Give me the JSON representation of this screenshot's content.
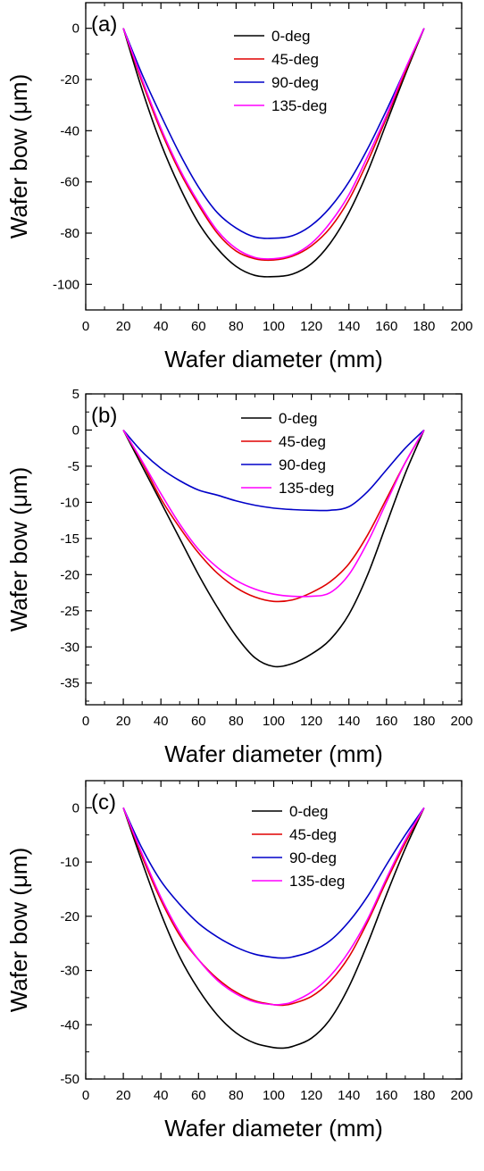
{
  "colors": {
    "0-deg": "#000000",
    "45-deg": "#e00000",
    "90-deg": "#0000c8",
    "135-deg": "#ff00ff"
  },
  "chart_data": [
    {
      "type": "line",
      "panel_label": "(a)",
      "xlabel": "Wafer diameter (mm)",
      "ylabel": "Wafer bow (μm)",
      "xlim": [
        0,
        200
      ],
      "ylim": [
        -110,
        10
      ],
      "xticks": [
        0,
        20,
        40,
        60,
        80,
        100,
        120,
        140,
        160,
        180,
        200
      ],
      "yticks": [
        0,
        -20,
        -40,
        -60,
        -80,
        -100
      ],
      "grid": false,
      "legend_position": "top-center",
      "series": [
        {
          "name": "0-deg",
          "color": "#000000",
          "x": [
            20,
            30,
            40,
            50,
            60,
            70,
            80,
            90,
            100,
            110,
            120,
            130,
            140,
            150,
            160,
            170,
            180
          ],
          "y": [
            0,
            -24,
            -45,
            -62,
            -76,
            -86,
            -93,
            -96.5,
            -97,
            -96,
            -92,
            -84,
            -72,
            -56,
            -37,
            -18,
            0
          ]
        },
        {
          "name": "45-deg",
          "color": "#e00000",
          "x": [
            20,
            30,
            40,
            50,
            60,
            70,
            80,
            90,
            100,
            110,
            120,
            130,
            140,
            150,
            160,
            170,
            180
          ],
          "y": [
            0,
            -21,
            -40,
            -56,
            -69,
            -80,
            -87,
            -90,
            -90.5,
            -89,
            -85,
            -78,
            -67,
            -52,
            -35,
            -17,
            0
          ]
        },
        {
          "name": "90-deg",
          "color": "#0000c8",
          "x": [
            20,
            30,
            40,
            50,
            60,
            70,
            80,
            90,
            100,
            110,
            120,
            130,
            140,
            150,
            160,
            170,
            180
          ],
          "y": [
            0,
            -18,
            -34,
            -49,
            -62,
            -72,
            -78,
            -81.5,
            -82,
            -81,
            -77,
            -70,
            -60,
            -47,
            -32,
            -16,
            0
          ]
        },
        {
          "name": "135-deg",
          "color": "#ff00ff",
          "x": [
            20,
            30,
            40,
            50,
            60,
            70,
            80,
            90,
            100,
            110,
            120,
            130,
            140,
            150,
            160,
            170,
            180
          ],
          "y": [
            0,
            -20,
            -39,
            -55,
            -68,
            -79,
            -86,
            -89.5,
            -90,
            -88.5,
            -84,
            -76,
            -65,
            -50,
            -34,
            -16,
            0
          ]
        }
      ]
    },
    {
      "type": "line",
      "panel_label": "(b)",
      "xlabel": "Wafer diameter (mm)",
      "ylabel": "Wafer bow (μm)",
      "xlim": [
        0,
        200
      ],
      "ylim": [
        -38,
        5
      ],
      "xticks": [
        0,
        20,
        40,
        60,
        80,
        100,
        120,
        140,
        160,
        180,
        200
      ],
      "yticks": [
        5,
        0,
        -5,
        -10,
        -15,
        -20,
        -25,
        -30,
        -35
      ],
      "grid": false,
      "legend_position": "top-center",
      "series": [
        {
          "name": "0-deg",
          "color": "#000000",
          "x": [
            20,
            30,
            40,
            50,
            60,
            70,
            80,
            90,
            100,
            110,
            120,
            130,
            140,
            150,
            160,
            170,
            180
          ],
          "y": [
            0,
            -5,
            -10,
            -15,
            -20,
            -24.5,
            -28.5,
            -31.5,
            -32.7,
            -32.3,
            -31,
            -29,
            -25.5,
            -20,
            -13,
            -6,
            0
          ]
        },
        {
          "name": "45-deg",
          "color": "#e00000",
          "x": [
            20,
            30,
            40,
            50,
            60,
            70,
            80,
            90,
            100,
            110,
            120,
            130,
            140,
            150,
            160,
            170,
            180
          ],
          "y": [
            0,
            -4.5,
            -9.5,
            -13.5,
            -17,
            -19.8,
            -21.8,
            -23.1,
            -23.7,
            -23.5,
            -22.5,
            -21,
            -18.5,
            -14.5,
            -9.5,
            -4.5,
            0
          ]
        },
        {
          "name": "90-deg",
          "color": "#0000c8",
          "x": [
            20,
            30,
            40,
            50,
            60,
            70,
            80,
            90,
            100,
            110,
            120,
            130,
            140,
            150,
            160,
            170,
            180
          ],
          "y": [
            0,
            -3,
            -5.3,
            -7,
            -8.3,
            -9,
            -9.8,
            -10.4,
            -10.8,
            -11,
            -11.1,
            -11.1,
            -10.6,
            -8.5,
            -5.5,
            -2.5,
            0
          ]
        },
        {
          "name": "135-deg",
          "color": "#ff00ff",
          "x": [
            20,
            30,
            40,
            50,
            60,
            70,
            80,
            90,
            100,
            110,
            120,
            130,
            140,
            150,
            160,
            170,
            180
          ],
          "y": [
            0,
            -4.3,
            -8.8,
            -13,
            -16.5,
            -19,
            -20.8,
            -22,
            -22.7,
            -23,
            -23,
            -22.5,
            -20,
            -15.5,
            -10,
            -4.5,
            0
          ]
        }
      ]
    },
    {
      "type": "line",
      "panel_label": "(c)",
      "xlabel": "Wafer diameter (mm)",
      "ylabel": "Wafer bow (μm)",
      "xlim": [
        0,
        200
      ],
      "ylim": [
        -50,
        5
      ],
      "xticks": [
        0,
        20,
        40,
        60,
        80,
        100,
        120,
        140,
        160,
        180,
        200
      ],
      "yticks": [
        0,
        -10,
        -20,
        -30,
        -40,
        -50
      ],
      "grid": false,
      "legend_position": "top-center",
      "series": [
        {
          "name": "0-deg",
          "color": "#000000",
          "x": [
            20,
            30,
            40,
            50,
            60,
            70,
            80,
            90,
            100,
            105,
            110,
            120,
            130,
            140,
            150,
            160,
            170,
            180
          ],
          "y": [
            0,
            -10,
            -19.5,
            -27.5,
            -33.5,
            -38.2,
            -41.5,
            -43.4,
            -44.2,
            -44.3,
            -44,
            -42.5,
            -39,
            -33,
            -25,
            -16,
            -7.5,
            0
          ]
        },
        {
          "name": "45-deg",
          "color": "#e00000",
          "x": [
            20,
            30,
            40,
            50,
            60,
            70,
            80,
            90,
            100,
            105,
            110,
            120,
            130,
            140,
            150,
            160,
            170,
            180
          ],
          "y": [
            0,
            -9,
            -17,
            -23.5,
            -28,
            -31.5,
            -34,
            -35.6,
            -36.3,
            -36.4,
            -36.1,
            -34.8,
            -32,
            -27.5,
            -21,
            -13.5,
            -6.5,
            0
          ]
        },
        {
          "name": "90-deg",
          "color": "#0000c8",
          "x": [
            20,
            30,
            40,
            50,
            60,
            70,
            80,
            90,
            100,
            105,
            110,
            120,
            130,
            140,
            150,
            160,
            170,
            180
          ],
          "y": [
            0,
            -7.5,
            -13.5,
            -17.8,
            -21.3,
            -23.8,
            -25.7,
            -27,
            -27.6,
            -27.7,
            -27.5,
            -26.5,
            -24.5,
            -21,
            -16.3,
            -10.5,
            -5,
            0
          ]
        },
        {
          "name": "135-deg",
          "color": "#ff00ff",
          "x": [
            20,
            30,
            40,
            50,
            60,
            70,
            80,
            90,
            100,
            105,
            110,
            120,
            130,
            140,
            150,
            160,
            170,
            180
          ],
          "y": [
            0,
            -8.5,
            -16.5,
            -23,
            -28,
            -31.8,
            -34.3,
            -35.8,
            -36.3,
            -36.2,
            -35.8,
            -34,
            -31,
            -26.5,
            -20.5,
            -13,
            -6,
            0
          ]
        }
      ]
    }
  ]
}
